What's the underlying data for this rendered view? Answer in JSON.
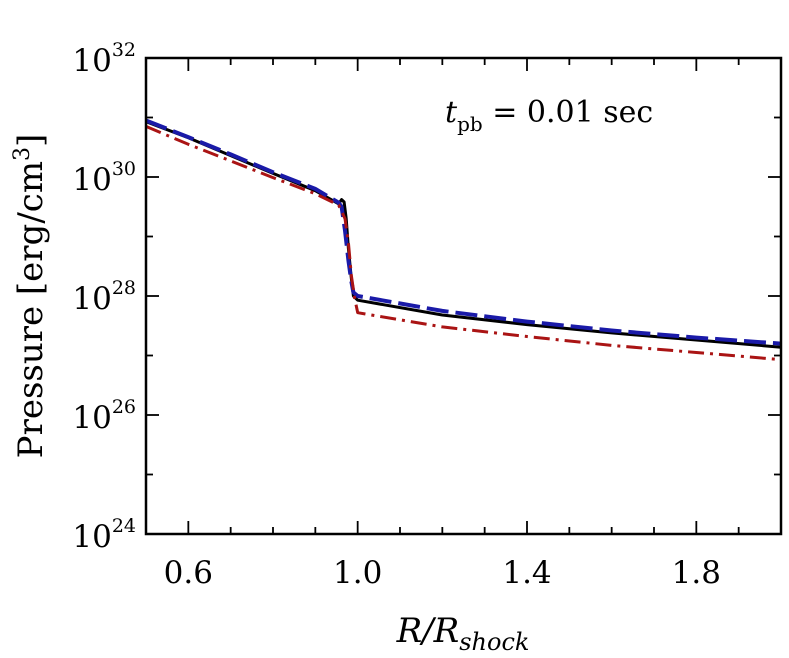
{
  "chart_data": {
    "type": "line",
    "xlabel": {
      "main": "R/R",
      "sub": "shock"
    },
    "ylabel": "Pressure  [erg/cm3]",
    "ylabel_parts": {
      "text": "Pressure  [erg/cm",
      "sup": "3",
      "close": "]"
    },
    "annotation": {
      "var": "t",
      "sub": "pb",
      "rest": " = 0.01 sec"
    },
    "xlim": [
      0.5,
      2.0
    ],
    "ylim": [
      24,
      32
    ],
    "y_scale": "log10",
    "x_ticks": [
      {
        "value": 0.6,
        "label": "0.6"
      },
      {
        "value": 1.0,
        "label": "1.0"
      },
      {
        "value": 1.4,
        "label": "1.4"
      },
      {
        "value": 1.8,
        "label": "1.8"
      }
    ],
    "y_ticks": [
      {
        "value": 24,
        "base": "10",
        "exp": "24"
      },
      {
        "value": 26,
        "base": "10",
        "exp": "26"
      },
      {
        "value": 28,
        "base": "10",
        "exp": "28"
      },
      {
        "value": 30,
        "base": "10",
        "exp": "30"
      },
      {
        "value": 32,
        "base": "10",
        "exp": "32"
      }
    ],
    "series": [
      {
        "color": "#000000",
        "style": "solid",
        "width": 3,
        "x": [
          0.5,
          0.6,
          0.7,
          0.8,
          0.9,
          0.955,
          0.962,
          0.968,
          0.973,
          0.978,
          0.985,
          0.99,
          1.0,
          1.2,
          1.4,
          1.6,
          1.8,
          2.0
        ],
        "y": [
          30.93,
          30.66,
          30.36,
          30.06,
          29.77,
          29.55,
          29.62,
          29.58,
          29.3,
          28.8,
          28.3,
          28.0,
          27.93,
          27.68,
          27.52,
          27.38,
          27.26,
          27.14
        ]
      },
      {
        "color": "#1a1aa8",
        "style": "dashed",
        "width": 4,
        "x": [
          0.5,
          0.6,
          0.7,
          0.8,
          0.9,
          0.955,
          0.962,
          0.97,
          0.978,
          0.985,
          0.99,
          1.0,
          1.2,
          1.4,
          1.6,
          1.8,
          2.0
        ],
        "y": [
          30.95,
          30.67,
          30.38,
          30.08,
          29.8,
          29.57,
          29.5,
          29.1,
          28.6,
          28.25,
          28.06,
          28.0,
          27.75,
          27.57,
          27.42,
          27.3,
          27.2
        ]
      },
      {
        "color": "#aa1414",
        "style": "dashdot",
        "width": 3,
        "x": [
          0.5,
          0.6,
          0.7,
          0.8,
          0.9,
          0.955,
          0.97,
          0.978,
          0.985,
          0.993,
          1.0,
          1.2,
          1.4,
          1.6,
          1.8,
          2.0
        ],
        "y": [
          30.85,
          30.55,
          30.27,
          29.99,
          29.72,
          29.53,
          29.3,
          28.9,
          28.35,
          27.96,
          27.72,
          27.48,
          27.32,
          27.17,
          27.05,
          26.93
        ]
      }
    ]
  }
}
